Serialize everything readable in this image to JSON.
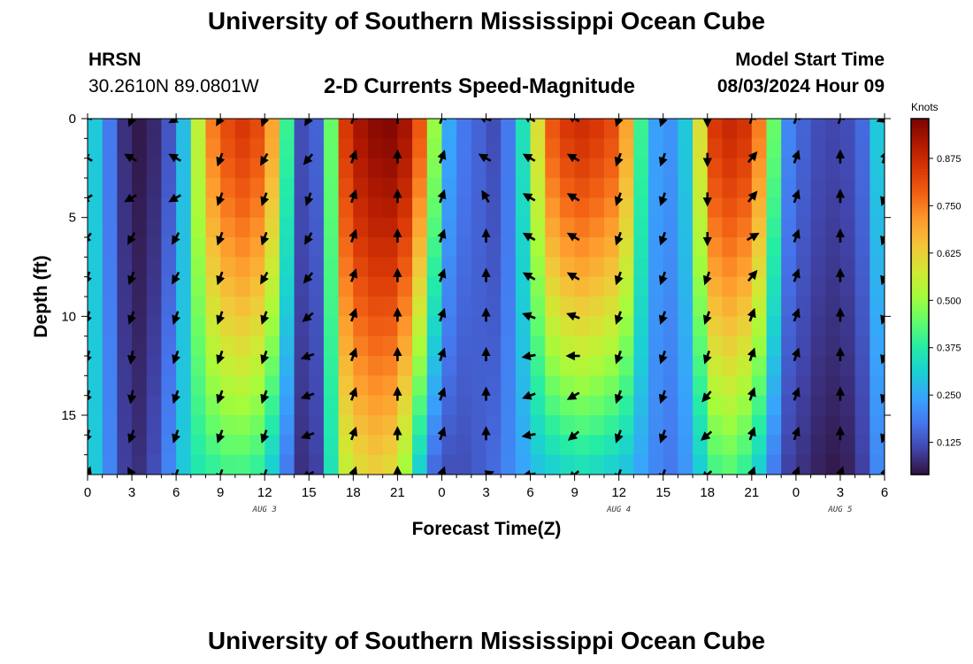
{
  "header": {
    "title": "University of Southern Mississippi Ocean Cube",
    "station_name": "HRSN",
    "station_coords": "30.2610N  89.0801W",
    "subtitle": "2-D Currents Speed-Magnitude",
    "model_start_label": "Model Start Time",
    "model_start_value": "08/03/2024 Hour 09"
  },
  "footer": {
    "title": "University of Southern Mississippi Ocean Cube"
  },
  "chart_data": {
    "type": "heatmap",
    "title": "2-D Currents Speed-Magnitude",
    "xlabel": "Forecast Time(Z)",
    "ylabel": "Depth (ft)",
    "x_unit": "forecast hour",
    "xlim": [
      0,
      54
    ],
    "ylim": [
      0,
      18
    ],
    "y_inverted": true,
    "x_ticks": [
      0,
      3,
      6,
      9,
      12,
      15,
      18,
      21,
      24,
      27,
      30,
      33,
      36,
      39,
      42,
      45,
      48,
      51,
      54
    ],
    "x_tick_labels": [
      "0",
      "3",
      "6",
      "9",
      "12",
      "15",
      "18",
      "21",
      "0",
      "3",
      "6",
      "9",
      "12",
      "15",
      "18",
      "21",
      "0",
      "3",
      "6"
    ],
    "y_ticks": [
      0,
      5,
      10,
      15
    ],
    "y_tick_labels": [
      "0",
      "5",
      "10",
      "15"
    ],
    "date_labels": [
      {
        "x": 12,
        "text": "AUG 3"
      },
      {
        "x": 36,
        "text": "AUG 4"
      },
      {
        "x": 51,
        "text": "AUG 5"
      }
    ],
    "colorbar": {
      "label": "Knots",
      "range": [
        0.04,
        0.98
      ],
      "ticks": [
        0.125,
        0.25,
        0.375,
        0.5,
        0.625,
        0.75,
        0.875
      ],
      "tick_labels": [
        "0.125",
        "0.250",
        "0.375",
        "0.500",
        "0.625",
        "0.750",
        "0.875"
      ],
      "colors": [
        "#30123b",
        "#4145ab",
        "#4675ed",
        "#39a2fc",
        "#1bcfd4",
        "#24eca6",
        "#61fc6c",
        "#a4fc3b",
        "#d1e834",
        "#f3c63a",
        "#fe9b2d",
        "#f36315",
        "#d93806",
        "#b11901",
        "#7a0403"
      ]
    },
    "speed_profile": {
      "x": [
        0,
        0.5,
        1.5,
        2.5,
        3.5,
        4.5,
        5.5,
        6.5,
        7.5,
        8.5,
        9.5,
        10.5,
        11.5,
        12.5,
        13.5,
        14.5,
        15.5,
        16.5,
        17.5,
        18.5,
        19.5,
        20.5,
        21.5,
        22.5,
        23.5,
        24.5,
        25.5,
        26.5,
        27.5,
        28.5,
        29.5,
        30.5,
        31.5,
        32.5,
        33.5,
        34.5,
        35.5,
        36.5,
        37.5,
        38.5,
        39.5,
        40.5,
        41.5,
        42.5,
        43.5,
        44.5,
        45.5,
        46.5,
        47.5,
        48.5,
        49.5,
        50.5,
        51.5,
        52.5,
        53.5,
        54
      ],
      "surface": [
        0.5,
        0.3,
        0.18,
        0.08,
        0.05,
        0.07,
        0.13,
        0.28,
        0.55,
        0.75,
        0.82,
        0.85,
        0.82,
        0.7,
        0.4,
        0.12,
        0.15,
        0.45,
        0.85,
        0.93,
        0.96,
        0.97,
        0.93,
        0.8,
        0.5,
        0.25,
        0.18,
        0.15,
        0.12,
        0.18,
        0.35,
        0.6,
        0.8,
        0.85,
        0.87,
        0.85,
        0.82,
        0.7,
        0.4,
        0.24,
        0.22,
        0.3,
        0.6,
        0.85,
        0.88,
        0.86,
        0.75,
        0.45,
        0.2,
        0.15,
        0.12,
        0.11,
        0.12,
        0.16,
        0.3,
        0.4
      ],
      "bottom": [
        0.45,
        0.3,
        0.2,
        0.1,
        0.08,
        0.12,
        0.2,
        0.3,
        0.36,
        0.38,
        0.4,
        0.4,
        0.38,
        0.3,
        0.18,
        0.08,
        0.1,
        0.35,
        0.55,
        0.6,
        0.62,
        0.6,
        0.5,
        0.3,
        0.15,
        0.12,
        0.12,
        0.14,
        0.16,
        0.2,
        0.24,
        0.28,
        0.3,
        0.32,
        0.33,
        0.32,
        0.3,
        0.28,
        0.24,
        0.2,
        0.18,
        0.22,
        0.3,
        0.4,
        0.42,
        0.38,
        0.3,
        0.18,
        0.1,
        0.08,
        0.06,
        0.05,
        0.06,
        0.1,
        0.2,
        0.28
      ]
    },
    "vectors": {
      "x": [
        0,
        3,
        6,
        9,
        12,
        15,
        18,
        21,
        24,
        27,
        30,
        33,
        36,
        39,
        42,
        45,
        48,
        51,
        54
      ],
      "depths": [
        0,
        2,
        4,
        6,
        8,
        10,
        12,
        14,
        16,
        18
      ],
      "direction_deg": [
        [
          20,
          300,
          240,
          220,
          200,
          200,
          200,
          200,
          200,
          20
        ],
        [
          200,
          300,
          240,
          210,
          200,
          200,
          190,
          190,
          200,
          330
        ],
        [
          240,
          300,
          240,
          210,
          210,
          200,
          200,
          200,
          200,
          200
        ],
        [
          210,
          200,
          200,
          200,
          200,
          200,
          200,
          200,
          200,
          200
        ],
        [
          200,
          210,
          200,
          200,
          210,
          200,
          200,
          200,
          200,
          200
        ],
        [
          210,
          220,
          200,
          210,
          220,
          230,
          250,
          250,
          250,
          240
        ],
        [
          20,
          20,
          20,
          20,
          20,
          20,
          20,
          20,
          20,
          20
        ],
        [
          0,
          0,
          0,
          0,
          0,
          0,
          0,
          0,
          0,
          0
        ],
        [
          20,
          20,
          20,
          20,
          20,
          20,
          20,
          20,
          20,
          20
        ],
        [
          290,
          300,
          330,
          0,
          0,
          0,
          0,
          0,
          0,
          70
        ],
        [
          300,
          300,
          300,
          300,
          300,
          290,
          260,
          250,
          260,
          260
        ],
        [
          300,
          300,
          300,
          300,
          300,
          290,
          270,
          240,
          230,
          230
        ],
        [
          200,
          200,
          200,
          200,
          200,
          200,
          200,
          200,
          200,
          200
        ],
        [
          200,
          200,
          200,
          200,
          200,
          200,
          200,
          200,
          200,
          200
        ],
        [
          180,
          180,
          180,
          180,
          200,
          200,
          200,
          220,
          230,
          230
        ],
        [
          20,
          40,
          40,
          60,
          40,
          20,
          20,
          20,
          20,
          20
        ],
        [
          20,
          20,
          20,
          20,
          20,
          20,
          20,
          20,
          20,
          20
        ],
        [
          20,
          0,
          0,
          0,
          0,
          0,
          0,
          0,
          0,
          20
        ],
        [
          250,
          20,
          200,
          200,
          200,
          200,
          200,
          200,
          200,
          20
        ]
      ]
    }
  }
}
